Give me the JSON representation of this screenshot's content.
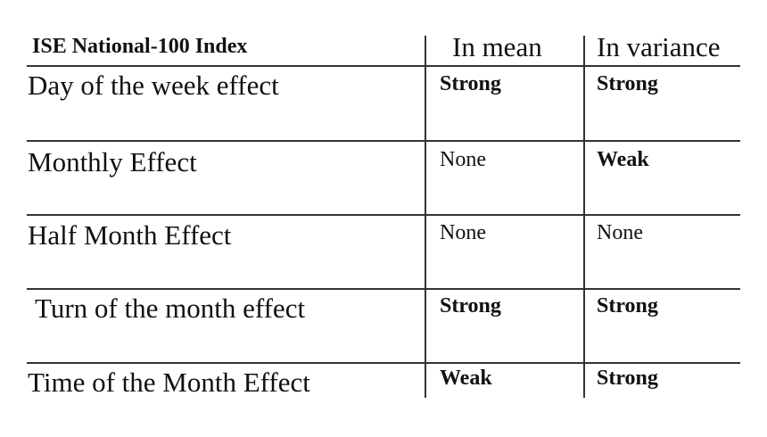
{
  "table": {
    "headers": [
      "ISE National-100 Index",
      "In mean",
      "In variance"
    ],
    "rows": [
      {
        "label": "Day of the week effect",
        "mean": "Strong",
        "variance": "Strong",
        "mean_bold": true,
        "variance_bold": true
      },
      {
        "label": "Monthly Effect",
        "mean": "None",
        "variance": "Weak",
        "mean_bold": false,
        "variance_bold": true
      },
      {
        "label": "Half Month Effect",
        "mean": "None",
        "variance": "None",
        "mean_bold": false,
        "variance_bold": false
      },
      {
        "label": "Turn of the month effect",
        "mean": "Strong",
        "variance": "Strong",
        "mean_bold": true,
        "variance_bold": true
      },
      {
        "label": "Time of the Month Effect",
        "mean": "Weak",
        "variance": "Strong",
        "mean_bold": true,
        "variance_bold": true
      }
    ]
  }
}
